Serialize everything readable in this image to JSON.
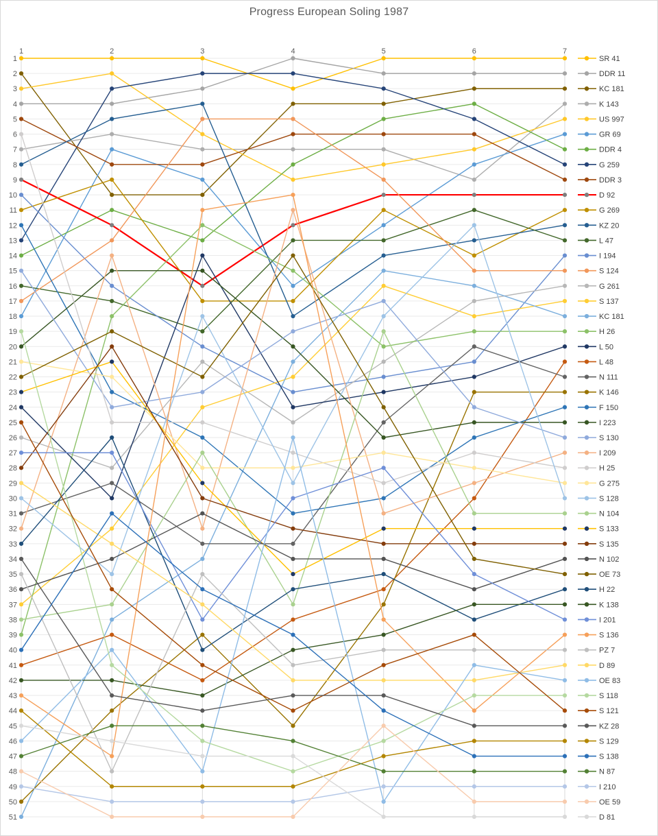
{
  "title": "Progress European Soling 1987",
  "chart_data": {
    "type": "line",
    "title": "Progress European Soling 1987",
    "x": [
      1,
      2,
      3,
      4,
      5,
      6,
      7
    ],
    "xlabel": "",
    "ylabel": "",
    "ylim": [
      1,
      51
    ],
    "y_inverted": true,
    "grid": true,
    "legend_position": "right",
    "series": [
      {
        "name": "SR 41",
        "color": "#FFC000",
        "values": [
          1,
          1,
          1,
          3,
          1,
          1,
          1
        ]
      },
      {
        "name": "DDR 11",
        "color": "#A5A5A5",
        "values": [
          4,
          4,
          3,
          1,
          2,
          2,
          2
        ]
      },
      {
        "name": "KC 181",
        "color": "#806000",
        "values": [
          2,
          10,
          10,
          4,
          4,
          3,
          3
        ]
      },
      {
        "name": "K 143",
        "color": "#ADADAD",
        "values": [
          7,
          6,
          7,
          7,
          7,
          9,
          4
        ]
      },
      {
        "name": "US 997",
        "color": "#FFC82A",
        "values": [
          3,
          2,
          6,
          9,
          8,
          7,
          5
        ]
      },
      {
        "name": "GR 69",
        "color": "#5B9BD5",
        "values": [
          18,
          7,
          9,
          16,
          12,
          8,
          6
        ]
      },
      {
        "name": "DDR 4",
        "color": "#6DAE45",
        "values": [
          14,
          11,
          13,
          8,
          5,
          4,
          7
        ]
      },
      {
        "name": "G 259",
        "color": "#264478",
        "values": [
          13,
          3,
          2,
          2,
          3,
          5,
          8
        ]
      },
      {
        "name": "DDR 3",
        "color": "#9E480E",
        "values": [
          5,
          8,
          8,
          6,
          6,
          6,
          9
        ]
      },
      {
        "name": "D 92",
        "color": "#FF0000",
        "marker": "#7F7F7F",
        "width": 2.2,
        "values": [
          9,
          12,
          16,
          12,
          10,
          10,
          10
        ]
      },
      {
        "name": "G 269",
        "color": "#BF8F00",
        "values": [
          11,
          9,
          17,
          17,
          11,
          14,
          11
        ]
      },
      {
        "name": "KZ 20",
        "color": "#255E91",
        "values": [
          8,
          5,
          4,
          18,
          14,
          13,
          12
        ]
      },
      {
        "name": "L 47",
        "color": "#43682B",
        "values": [
          16,
          17,
          19,
          13,
          13,
          11,
          13
        ]
      },
      {
        "name": "I 194",
        "color": "#698ED0",
        "values": [
          10,
          16,
          20,
          23,
          22,
          21,
          14
        ]
      },
      {
        "name": "S 124",
        "color": "#F1975A",
        "values": [
          17,
          13,
          5,
          5,
          9,
          15,
          15
        ]
      },
      {
        "name": "G 261",
        "color": "#B7B7B7",
        "values": [
          26,
          28,
          21,
          25,
          21,
          17,
          16
        ]
      },
      {
        "name": "S 137",
        "color": "#FFCD33",
        "values": [
          37,
          32,
          24,
          22,
          16,
          18,
          17
        ]
      },
      {
        "name": "KC 181",
        "color": "#7CAFDD",
        "values": [
          51,
          38,
          34,
          21,
          15,
          16,
          18
        ]
      },
      {
        "name": "H 26",
        "color": "#8CC168",
        "values": [
          39,
          18,
          12,
          15,
          20,
          19,
          19
        ]
      },
      {
        "name": "L 50",
        "color": "#203864",
        "values": [
          24,
          30,
          14,
          24,
          23,
          22,
          20
        ]
      },
      {
        "name": "L 48",
        "color": "#C55A11",
        "values": [
          41,
          39,
          42,
          38,
          36,
          30,
          21
        ]
      },
      {
        "name": "N 111",
        "color": "#636363",
        "values": [
          31,
          29,
          33,
          33,
          25,
          20,
          22
        ]
      },
      {
        "name": "K 146",
        "color": "#997300",
        "values": [
          50,
          44,
          39,
          45,
          37,
          23,
          23
        ]
      },
      {
        "name": "F 150",
        "color": "#2E75B6",
        "values": [
          12,
          23,
          26,
          31,
          30,
          26,
          24
        ]
      },
      {
        "name": "I 223",
        "color": "#375623",
        "values": [
          20,
          15,
          15,
          20,
          26,
          25,
          25
        ]
      },
      {
        "name": "S 130",
        "color": "#8FAADC",
        "values": [
          15,
          24,
          23,
          19,
          17,
          24,
          26
        ]
      },
      {
        "name": "I 209",
        "color": "#F4B183",
        "values": [
          32,
          14,
          32,
          11,
          31,
          29,
          27
        ]
      },
      {
        "name": "H 25",
        "color": "#CFCDCD",
        "values": [
          6,
          25,
          25,
          27,
          29,
          27,
          28
        ]
      },
      {
        "name": "G 275",
        "color": "#FFE699",
        "values": [
          21,
          22,
          28,
          28,
          27,
          28,
          29
        ]
      },
      {
        "name": "S 128",
        "color": "#9DC3E6",
        "values": [
          30,
          35,
          18,
          29,
          18,
          12,
          30
        ]
      },
      {
        "name": "N 104",
        "color": "#A9D18E",
        "values": [
          38,
          37,
          27,
          37,
          19,
          31,
          31
        ]
      },
      {
        "name": "S 133",
        "color": "#FFC000",
        "marker": "#1F3864",
        "values": [
          23,
          21,
          29,
          35,
          32,
          32,
          32
        ]
      },
      {
        "name": "S 135",
        "color": "#843C0C",
        "values": [
          28,
          20,
          30,
          32,
          33,
          33,
          33
        ]
      },
      {
        "name": "N 102",
        "color": "#525252",
        "values": [
          36,
          34,
          31,
          34,
          34,
          36,
          34
        ]
      },
      {
        "name": "OE 73",
        "color": "#7F6000",
        "values": [
          22,
          19,
          22,
          14,
          24,
          34,
          35
        ]
      },
      {
        "name": "H 22",
        "color": "#1F4E79",
        "values": [
          33,
          26,
          40,
          36,
          35,
          38,
          36
        ]
      },
      {
        "name": "K 138",
        "color": "#385723",
        "values": [
          42,
          42,
          43,
          40,
          39,
          37,
          37
        ]
      },
      {
        "name": "I 201",
        "color": "#6F8FD8",
        "values": [
          27,
          27,
          38,
          30,
          28,
          35,
          38
        ]
      },
      {
        "name": "S 136",
        "color": "#F6A05A",
        "values": [
          43,
          47,
          11,
          10,
          38,
          44,
          39
        ]
      },
      {
        "name": "PZ 7",
        "color": "#BFBFBF",
        "values": [
          35,
          48,
          35,
          41,
          40,
          40,
          40
        ]
      },
      {
        "name": "D 89",
        "color": "#FFD966",
        "values": [
          29,
          33,
          37,
          42,
          42,
          42,
          41
        ]
      },
      {
        "name": "OE 83",
        "color": "#8FBCE6",
        "values": [
          46,
          40,
          48,
          26,
          50,
          41,
          42
        ]
      },
      {
        "name": "S 118",
        "color": "#B5D9A0",
        "values": [
          19,
          41,
          46,
          48,
          46,
          43,
          43
        ]
      },
      {
        "name": "S 121",
        "color": "#A64B08",
        "values": [
          25,
          36,
          41,
          44,
          41,
          39,
          44
        ]
      },
      {
        "name": "KZ 28",
        "color": "#595959",
        "values": [
          34,
          43,
          44,
          43,
          43,
          45,
          45
        ]
      },
      {
        "name": "S 129",
        "color": "#B38600",
        "values": [
          44,
          49,
          49,
          49,
          47,
          46,
          46
        ]
      },
      {
        "name": "S 138",
        "color": "#2C70B8",
        "values": [
          40,
          31,
          36,
          39,
          44,
          47,
          47
        ]
      },
      {
        "name": "N 87",
        "color": "#538135",
        "values": [
          47,
          45,
          45,
          46,
          48,
          48,
          48
        ]
      },
      {
        "name": "I 210",
        "color": "#B4C7E7",
        "values": [
          49,
          50,
          50,
          50,
          49,
          49,
          49
        ]
      },
      {
        "name": "OE 59",
        "color": "#F8CBAD",
        "values": [
          48,
          51,
          51,
          51,
          45,
          50,
          50
        ]
      },
      {
        "name": "D 81",
        "color": "#D9D9D9",
        "values": [
          45,
          46,
          47,
          47,
          51,
          51,
          51
        ]
      }
    ]
  },
  "colors": {
    "gridline_h": "#EAEAEA",
    "gridline_v": "#D9D9D9",
    "tick_text": "#595959",
    "legend_text": "#404040",
    "border": "#D9D9D9"
  }
}
